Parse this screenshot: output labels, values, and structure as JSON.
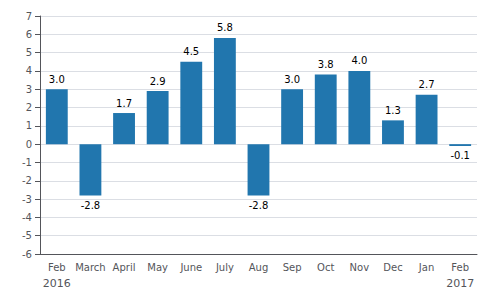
{
  "chart_data": {
    "type": "bar",
    "categories": [
      "Feb",
      "March",
      "April",
      "May",
      "June",
      "July",
      "Aug",
      "Sep",
      "Oct",
      "Nov",
      "Dec",
      "Jan",
      "Feb"
    ],
    "values": [
      3.0,
      -2.8,
      1.7,
      2.9,
      4.5,
      5.8,
      -2.8,
      3.0,
      3.8,
      4.0,
      1.3,
      2.7,
      -0.1
    ],
    "value_labels": [
      "3.0",
      "-2.8",
      "1.7",
      "2.9",
      "4.5",
      "5.8",
      "-2.8",
      "3.0",
      "3.8",
      "4.0",
      "1.3",
      "2.7",
      "-0.1"
    ],
    "color": "#2176AE",
    "ylim": [
      -6,
      7
    ],
    "yticks": [
      -6,
      -5,
      -4,
      -3,
      -2,
      -1,
      0,
      1,
      2,
      3,
      4,
      5,
      6,
      7
    ],
    "grid": true,
    "data_labels": true,
    "annotations": [
      "2016",
      "2017"
    ]
  }
}
